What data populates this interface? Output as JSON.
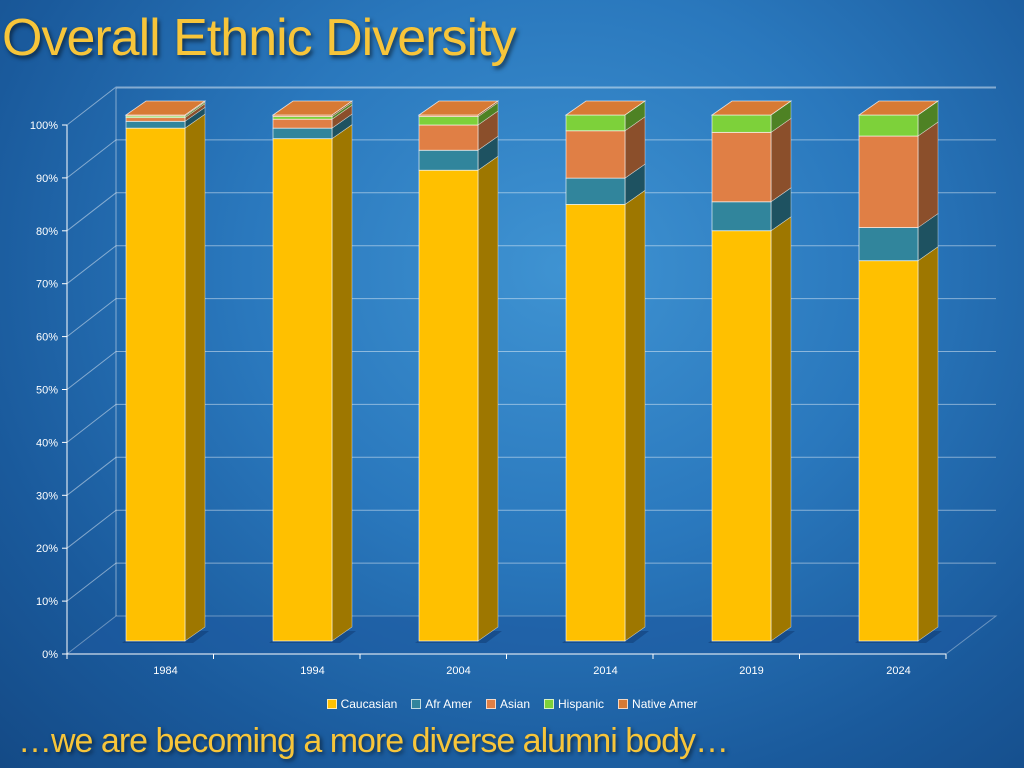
{
  "slide": {
    "title": "Overall Ethnic Diversity",
    "subtitle": "…we are becoming a more diverse alumni body…"
  },
  "chart_data": {
    "type": "bar",
    "stacked": true,
    "percent_stacked": true,
    "three_d": true,
    "categories": [
      "1984",
      "1994",
      "2004",
      "2014",
      "2019",
      "2024"
    ],
    "series": [
      {
        "name": "Caucasian",
        "color": "#ffc000",
        "values": [
          97.5,
          95.5,
          89.5,
          83,
          78,
          72.3
        ]
      },
      {
        "name": "Afr Amer",
        "color": "#31859c",
        "values": [
          1.3,
          2.0,
          3.8,
          5,
          5.5,
          6.3
        ]
      },
      {
        "name": "Asian",
        "color": "#e07f45",
        "values": [
          0.7,
          1.7,
          4.8,
          9,
          13.2,
          17.4
        ]
      },
      {
        "name": "Hispanic",
        "color": "#7dd13a",
        "values": [
          0.3,
          0.5,
          1.6,
          3,
          3.3,
          4
        ]
      },
      {
        "name": "Native Amer",
        "color": "#d77a34",
        "values": [
          0.2,
          0.3,
          0.3,
          0,
          0,
          0
        ]
      }
    ],
    "y_ticks": [
      "0%",
      "10%",
      "20%",
      "30%",
      "40%",
      "50%",
      "60%",
      "70%",
      "80%",
      "90%",
      "100%"
    ],
    "ylim": [
      0,
      100
    ],
    "grid": true,
    "legend_position": "bottom"
  }
}
